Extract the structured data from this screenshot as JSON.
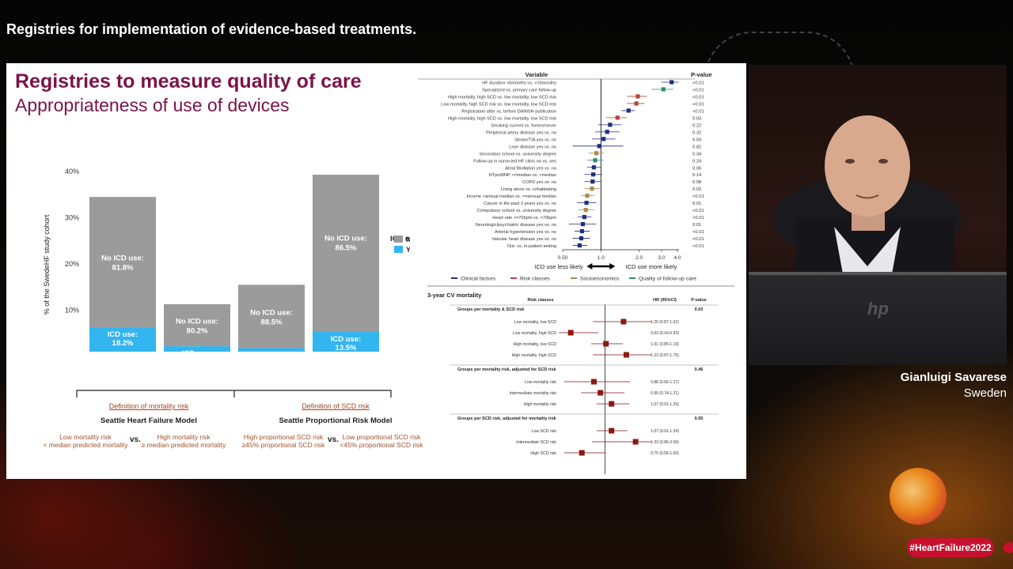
{
  "banner": {
    "title": "Registries for implementation of evidence-based treatments."
  },
  "slide": {
    "title": "Registries to measure quality of care",
    "subtitle": "Appropriateness of use of devices",
    "bar_chart": {
      "ylabel": "% of the SwedeHF study cohort",
      "yticks": [
        "40%",
        "30%",
        "20%",
        "10%",
        "0%"
      ],
      "legend_title": "ICD use",
      "legend": [
        {
          "label": "No",
          "color": "#9b9b9b"
        },
        {
          "label": "Yes",
          "color": "#33b5f0"
        }
      ],
      "bars": [
        {
          "category": "Low mortality & high SCD",
          "cat1": "Low mortality &",
          "cat2": "high SCD",
          "total": 34.5,
          "yes": 6.3,
          "no_label1": "No ICD use:",
          "no_label2": "81.8%",
          "yes_label1": "ICD use:",
          "yes_label2": "18.2%"
        },
        {
          "category": "High mortality & high SCD",
          "cat1": "High mortality &",
          "cat2": "high SCD",
          "total": 11.3,
          "yes": 2.2,
          "no_label1": "No ICD use:",
          "no_label2": "80.2%",
          "yes_label1": "ICD use:",
          "yes_label2": "19.8%"
        },
        {
          "category": "Low mortality & low SCD",
          "cat1": "Low mortality &",
          "cat2": "low SCD",
          "total": 15.5,
          "yes": 1.8,
          "no_label1": "No ICD use:",
          "no_label2": "88.5%",
          "yes_label1": "ICD use:",
          "yes_label2": "11.5%"
        },
        {
          "category": "High mortality & low SCD",
          "cat1": "High mortality &",
          "cat2": "low SCD",
          "total": 39.3,
          "yes": 5.3,
          "no_label1": "No ICD use:",
          "no_label2": "86.5%",
          "yes_label1": "ICD use:",
          "yes_label2": "13.5%"
        }
      ]
    },
    "definitions": {
      "mortality_link": "Definition of mortality risk",
      "mortality_model": "Seattle Heart Failure Model",
      "mortality_low1": "Low mortality risk",
      "mortality_low2": "< median predicted mortality",
      "mortality_high1": "High mortality risk",
      "mortality_high2": "≥ median predicted mortality",
      "scd_link": "Definition of SCD risk",
      "scd_model": "Seattle Proportional Risk Model",
      "scd_high1": "High proportional SCD risk",
      "scd_high2": "≥45% proportional SCD risk",
      "scd_low1": "Low proportional SCD risk",
      "scd_low2": "<45% proportional SCD risk",
      "vs": "vs."
    },
    "forest_top": {
      "header_variable": "Variable",
      "header_p": "P-value",
      "axis_ticks": [
        "0.50",
        "1.0",
        "2.0",
        "3.0",
        "4.0"
      ],
      "less_label": "ICD use less likely",
      "more_label": "ICD use more likely",
      "legend": [
        {
          "label": "Clinical factors",
          "color": "#1f2f7a"
        },
        {
          "label": "Risk classes",
          "color": "#b5473a"
        },
        {
          "label": "Socioeconomics",
          "color": "#b08a4a"
        },
        {
          "label": "Quality of follow-up care",
          "color": "#2e8b73"
        }
      ],
      "rows": [
        {
          "label": "HF duration >6months vs. <=6months",
          "or": 3.6,
          "lo": 3.0,
          "hi": 4.1,
          "p": "<0.01",
          "group": 0
        },
        {
          "label": "Specialized vs. primary care follow-up",
          "or": 3.1,
          "lo": 2.5,
          "hi": 3.7,
          "p": "<0.01",
          "group": 3
        },
        {
          "label": "High mortality, high SCD vs. low mortality, low SCD risk",
          "or": 1.95,
          "lo": 1.6,
          "hi": 2.3,
          "p": "<0.01",
          "group": 1
        },
        {
          "label": "Low mortality, high SCD risk vs. low mortality, low SCD risk",
          "or": 1.9,
          "lo": 1.6,
          "hi": 2.2,
          "p": "<0.01",
          "group": 1
        },
        {
          "label": "Registration after vs. before DANISH publication",
          "or": 1.65,
          "lo": 1.45,
          "hi": 1.85,
          "p": "<0.01",
          "group": 0
        },
        {
          "label": "High mortality, high SCD vs. low mortality, low SCD risk",
          "or": 1.35,
          "lo": 1.1,
          "hi": 1.6,
          "p": "0.03",
          "group": 1
        },
        {
          "label": "Smoking current vs. former/never",
          "or": 1.18,
          "lo": 0.95,
          "hi": 1.45,
          "p": "0.22",
          "group": 0
        },
        {
          "label": "Peripheral artery disease yes vs. no",
          "or": 1.12,
          "lo": 0.9,
          "hi": 1.4,
          "p": "0.32",
          "group": 0
        },
        {
          "label": "Stroke/TIA yes vs. no",
          "or": 1.05,
          "lo": 0.85,
          "hi": 1.3,
          "p": "0.59",
          "group": 0
        },
        {
          "label": "Liver disease yes vs. no",
          "or": 0.97,
          "lo": 0.6,
          "hi": 1.5,
          "p": "0.82",
          "group": 0
        },
        {
          "label": "Secondary school vs. university degree",
          "or": 0.92,
          "lo": 0.8,
          "hi": 1.05,
          "p": "0.34",
          "group": 2
        },
        {
          "label": "Follow-up in nurse-led HF clinic no vs. yes",
          "or": 0.9,
          "lo": 0.78,
          "hi": 1.05,
          "p": "0.24",
          "group": 3
        },
        {
          "label": "Atrial fibrillation yes vs. no",
          "or": 0.88,
          "lo": 0.78,
          "hi": 1.0,
          "p": "0.06",
          "group": 0
        },
        {
          "label": "NTproBNP >=median vs. <median",
          "or": 0.87,
          "lo": 0.74,
          "hi": 1.02,
          "p": "0.14",
          "group": 0
        },
        {
          "label": "COPD yes vs. no",
          "or": 0.86,
          "lo": 0.74,
          "hi": 1.0,
          "p": "0.08",
          "group": 0
        },
        {
          "label": "Living alone vs. cohabitating",
          "or": 0.85,
          "lo": 0.74,
          "hi": 0.98,
          "p": "0.02",
          "group": 2
        },
        {
          "label": "Income <annual median vs. >=annual median",
          "or": 0.78,
          "lo": 0.7,
          "hi": 0.88,
          "p": "<0.01",
          "group": 2
        },
        {
          "label": "Cancer in the past 3 years yes vs. no",
          "or": 0.77,
          "lo": 0.65,
          "hi": 0.92,
          "p": "0.01",
          "group": 0
        },
        {
          "label": "Compulsory school vs. university degree",
          "or": 0.76,
          "lo": 0.66,
          "hi": 0.88,
          "p": "<0.01",
          "group": 2
        },
        {
          "label": "Heart rate >=70bpm vs. <70bpm",
          "or": 0.74,
          "lo": 0.66,
          "hi": 0.84,
          "p": "<0.01",
          "group": 0
        },
        {
          "label": "Neurologic/psychiatric disease yes vs. no",
          "or": 0.72,
          "lo": 0.56,
          "hi": 0.92,
          "p": "0.01",
          "group": 0
        },
        {
          "label": "Arterial hypertension yes vs. no",
          "or": 0.71,
          "lo": 0.62,
          "hi": 0.82,
          "p": "<0.01",
          "group": 0
        },
        {
          "label": "Valvular heart disease yes vs. no",
          "or": 0.7,
          "lo": 0.6,
          "hi": 0.82,
          "p": "<0.01",
          "group": 0
        },
        {
          "label": "Out- vs. in-patient setting",
          "or": 0.68,
          "lo": 0.6,
          "hi": 0.78,
          "p": "<0.01",
          "group": 0
        }
      ]
    },
    "forest_bottom": {
      "title": "3-year CV mortality",
      "header_risk": "Risk classes",
      "header_hr": "HR (95%CI)",
      "header_p": "P-value",
      "axis_ticks": [
        "0.50",
        "0.75",
        "1.0",
        "1.25",
        "1.5"
      ],
      "axis_label": "Hazard ratio",
      "lower_label": "ICD associated with lower CV mortality",
      "higher_label": "ICD use associated with higher CV mort",
      "groups": [
        {
          "title": "Groups per mortality & SCD risk",
          "p": "0.03",
          "rows": [
            {
              "label": "Low mortality, low SCD",
              "hr": 1.2,
              "lo": 0.87,
              "hi": 1.62,
              "ci": "1.20 (0.87-1.62)"
            },
            {
              "label": "Low mortality, high SCD",
              "hr": 0.63,
              "lo": 0.43,
              "hi": 0.93,
              "ci": "0.63 (0.43-0.93)"
            },
            {
              "label": "High mortality, low SCD",
              "hr": 1.01,
              "lo": 0.85,
              "hi": 1.19,
              "ci": "1.01 (0.85-1.19)"
            },
            {
              "label": "High mortality, high SCD",
              "hr": 1.23,
              "lo": 0.87,
              "hi": 1.75,
              "ci": "1.23 (0.87-1.75)"
            }
          ]
        },
        {
          "title": "Groups per mortality risk, adjusted for SCD risk",
          "p": "0.46",
          "rows": [
            {
              "label": "Low mortality risk",
              "hr": 0.88,
              "lo": 0.56,
              "hi": 1.27,
              "ci": "0.88 (0.56-1.27)"
            },
            {
              "label": "Intermediate mortality risk",
              "hr": 0.95,
              "lo": 0.74,
              "hi": 1.21,
              "ci": "0.95 (0.74-1.21)"
            },
            {
              "label": "High mortality risk",
              "hr": 1.07,
              "lo": 0.91,
              "hi": 1.26,
              "ci": "1.07 (0.91-1.26)"
            }
          ]
        },
        {
          "title": "Groups per SCD risk, adjusted for mortality risk",
          "p": "0.05",
          "rows": [
            {
              "label": "Low SCD risk",
              "hr": 1.07,
              "lo": 0.91,
              "hi": 1.24,
              "ci": "1.07 (0.91-1.24)"
            },
            {
              "label": "Intermediate SCD risk",
              "hr": 1.33,
              "lo": 0.86,
              "hi": 2.56,
              "ci": "1.33 (0.86-2.56)"
            },
            {
              "label": "High SCD risk",
              "hr": 0.75,
              "lo": 0.56,
              "hi": 1.0,
              "ci": "0.75 (0.56-1.00)"
            }
          ]
        }
      ]
    }
  },
  "speaker": {
    "name": "Gianluigi Savarese",
    "country": "Sweden"
  },
  "hashtag": "#HeartFailure2022",
  "colors": {
    "title": "#7a1447",
    "no_icd": "#9b9b9b",
    "yes_icd": "#33b5f0",
    "hashtag": "#c8102e"
  }
}
